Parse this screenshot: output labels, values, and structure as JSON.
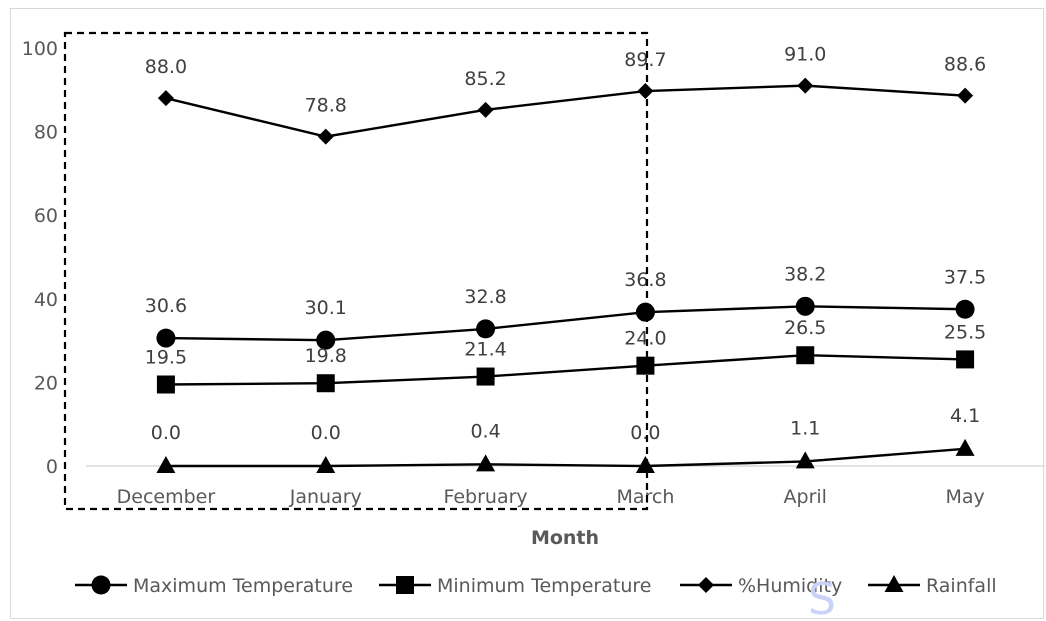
{
  "chart_data": {
    "type": "line",
    "categories": [
      "December",
      "January",
      "February",
      "March",
      "April",
      "May"
    ],
    "series": [
      {
        "name": "Maximum Temperature",
        "marker": "circle",
        "values": [
          30.6,
          30.1,
          32.8,
          36.8,
          38.2,
          37.5
        ],
        "labels": [
          "30.6",
          "30.1",
          "32.8",
          "36.8",
          "38.2",
          "37.5"
        ]
      },
      {
        "name": "Minimum Temperature",
        "marker": "square",
        "values": [
          19.5,
          19.8,
          21.4,
          24.0,
          26.5,
          25.5
        ],
        "labels": [
          "19.5",
          "19.8",
          "21.4",
          "24.0",
          "26.5",
          "25.5"
        ]
      },
      {
        "name": "%Humidity",
        "marker": "diamond",
        "values": [
          88.0,
          78.8,
          85.2,
          89.7,
          91.0,
          88.6
        ],
        "labels": [
          "88.0",
          "78.8",
          "85.2",
          "89.7",
          "91.0",
          "88.6"
        ]
      },
      {
        "name": "Rainfall",
        "marker": "triangle",
        "values": [
          0.0,
          0.0,
          0.4,
          0.0,
          1.1,
          4.1
        ],
        "labels": [
          "0.0",
          "0.0",
          "0.4",
          "0.0",
          "1.1",
          "4.1"
        ]
      }
    ],
    "title": "",
    "xlabel": "Month",
    "ylabel": "",
    "ylim": [
      0,
      100
    ],
    "yticks": [
      "0",
      "20",
      "40",
      "60",
      "80",
      "100"
    ],
    "grid": false,
    "legend_position": "bottom",
    "line_color": "#000000",
    "annotation": "dashed rectangle highlighting December to March",
    "watermark": "S"
  }
}
